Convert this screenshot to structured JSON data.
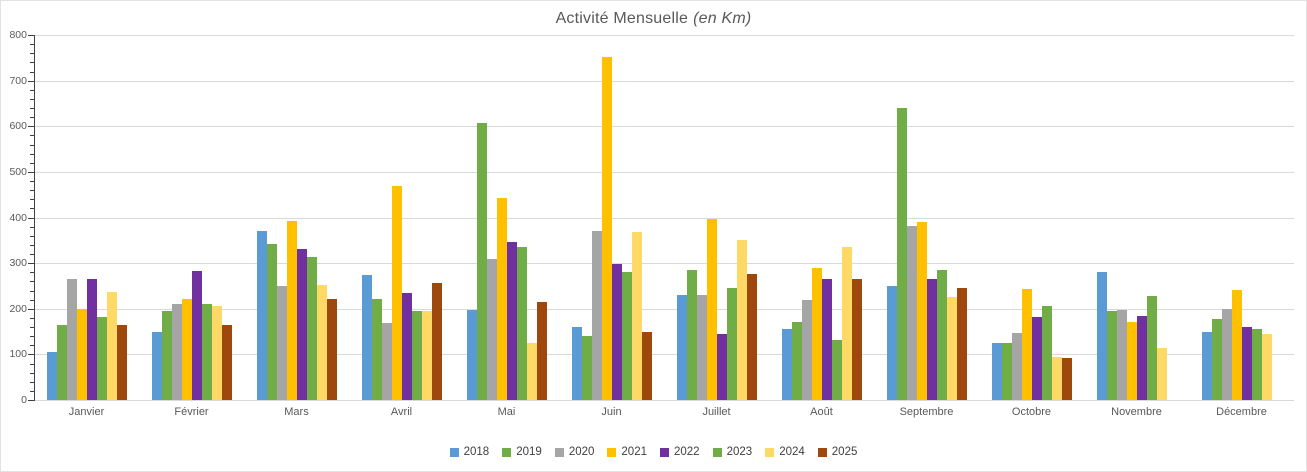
{
  "chart_data": {
    "type": "bar",
    "title": "Activité Mensuelle",
    "title_suffix": "(en Km)",
    "ylabel": "",
    "xlabel": "",
    "ylim": [
      0,
      800
    ],
    "y_tick_interval": 100,
    "y_minor_tick_interval": 20,
    "y_ticks": [
      "0",
      "100",
      "200",
      "300",
      "400",
      "500",
      "600",
      "700",
      "800"
    ],
    "grid": true,
    "legend_position": "bottom",
    "categories": [
      "Janvier",
      "Février",
      "Mars",
      "Avril",
      "Mai",
      "Juin",
      "Juillet",
      "Août",
      "Septembre",
      "Octobre",
      "Novembre",
      "Décembre"
    ],
    "series": [
      {
        "name": "2018",
        "color": "#5B9BD5",
        "values": [
          105,
          150,
          371,
          273,
          198,
          160,
          230,
          156,
          249,
          125,
          280,
          150
        ]
      },
      {
        "name": "2019",
        "color": "#70AD47",
        "values": [
          165,
          196,
          341,
          221,
          608,
          140,
          285,
          171,
          641,
          125,
          196,
          178
        ]
      },
      {
        "name": "2020",
        "color": "#A5A5A5",
        "values": [
          265,
          210,
          250,
          168,
          309,
          371,
          230,
          220,
          382,
          146,
          198,
          199
        ]
      },
      {
        "name": "2021",
        "color": "#FFC000",
        "values": [
          200,
          221,
          393,
          469,
          442,
          751,
          396,
          290,
          391,
          244,
          171,
          241
        ]
      },
      {
        "name": "2022",
        "color": "#7030A0",
        "values": [
          265,
          283,
          330,
          235,
          346,
          298,
          145,
          266,
          266,
          181,
          185,
          160
        ]
      },
      {
        "name": "2023",
        "color": "#70AD47",
        "values": [
          181,
          210,
          314,
          196,
          336,
          280,
          246,
          131,
          285,
          205,
          229,
          155
        ]
      },
      {
        "name": "2024",
        "color": "#FFD966",
        "values": [
          236,
          205,
          253,
          196,
          124,
          369,
          351,
          336,
          226,
          94,
          113,
          145
        ]
      },
      {
        "name": "2025",
        "color": "#9E480E",
        "values": [
          165,
          165,
          221,
          256,
          215,
          150,
          276,
          265,
          246,
          92,
          null,
          null
        ]
      }
    ],
    "colors": {
      "grid": "#D9D9D9",
      "axis": "#404040",
      "text": "#595959"
    }
  }
}
